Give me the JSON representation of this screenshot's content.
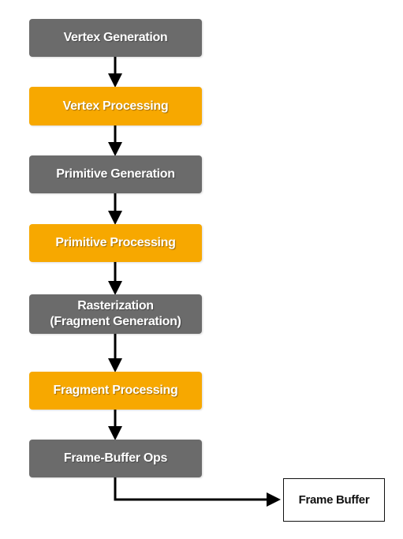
{
  "stages": [
    {
      "lines": [
        "Vertex Generation"
      ]
    },
    {
      "lines": [
        "Vertex Processing"
      ]
    },
    {
      "lines": [
        "Primitive Generation"
      ]
    },
    {
      "lines": [
        "Primitive Processing"
      ]
    },
    {
      "lines": [
        "Rasterization",
        "(Fragment Generation)"
      ]
    },
    {
      "lines": [
        "Fragment Processing"
      ]
    },
    {
      "lines": [
        "Frame-Buffer Ops"
      ]
    }
  ],
  "output": {
    "label": "Frame Buffer"
  },
  "colors": {
    "fixed_stage": "#6b6b6b",
    "programmable_stage": "#f7a800",
    "arrow": "#000000"
  }
}
